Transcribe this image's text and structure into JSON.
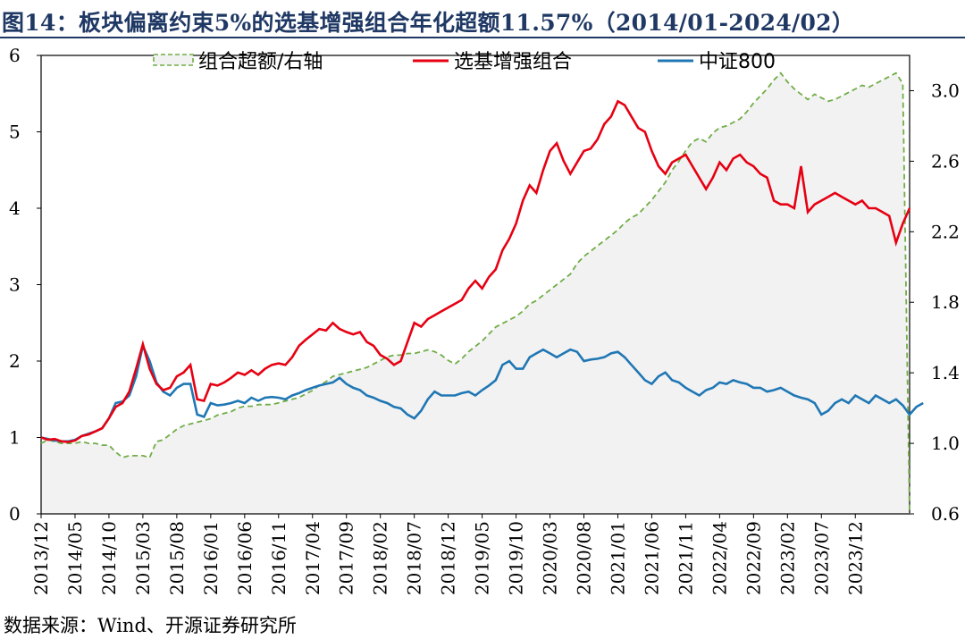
{
  "title": "图14：板块偏离约束5%的选基增强组合年化超额11.57%（2014/01-2024/02）",
  "source": "数据来源：Wind、开源证券研究所",
  "colors": {
    "title": "#1f3864",
    "excess": "#70ad47",
    "enhanced": "#e60012",
    "csi800": "#1f77b4",
    "area_fill": "#f2f2f2"
  },
  "chart_data": {
    "type": "line",
    "title": "板块偏离约束5%的选基增强组合年化超额11.57%（2014/01-2024/02）",
    "x_tick_labels": [
      "2013/12",
      "2014/05",
      "2014/10",
      "2015/03",
      "2015/08",
      "2016/01",
      "2016/06",
      "2016/11",
      "2017/04",
      "2017/09",
      "2018/02",
      "2018/07",
      "2018/12",
      "2019/05",
      "2019/10",
      "2020/03",
      "2020/08",
      "2021/01",
      "2021/06",
      "2021/11",
      "2022/04",
      "2022/09",
      "2023/02",
      "2023/07",
      "2023/12"
    ],
    "ylim_left": [
      0,
      6
    ],
    "yticks_left": [
      "0",
      "1",
      "2",
      "3",
      "4",
      "5",
      "6"
    ],
    "ylim_right": [
      0.6,
      3.2
    ],
    "yticks_right": [
      "0.6",
      "1.0",
      "1.4",
      "1.8",
      "2.2",
      "2.6",
      "3.0"
    ],
    "legend": [
      "组合超额/右轴",
      "选基增强组合",
      "中证800"
    ],
    "series": [
      {
        "name": "组合超额/右轴",
        "axis": "right",
        "style": "dashed-area",
        "values": [
          1.0,
          1.02,
          1.01,
          1.0,
          1.0,
          1.0,
          1.01,
          1.0,
          1.0,
          0.99,
          0.99,
          0.95,
          0.92,
          0.93,
          0.93,
          0.93,
          0.92,
          1.01,
          1.02,
          1.05,
          1.08,
          1.1,
          1.11,
          1.12,
          1.13,
          1.14,
          1.16,
          1.17,
          1.18,
          1.2,
          1.21,
          1.21,
          1.22,
          1.22,
          1.22,
          1.23,
          1.24,
          1.25,
          1.26,
          1.28,
          1.3,
          1.33,
          1.35,
          1.38,
          1.39,
          1.4,
          1.41,
          1.42,
          1.43,
          1.45,
          1.47,
          1.49,
          1.5,
          1.5,
          1.51,
          1.51,
          1.52,
          1.53,
          1.52,
          1.5,
          1.47,
          1.45,
          1.48,
          1.52,
          1.55,
          1.58,
          1.62,
          1.66,
          1.68,
          1.7,
          1.72,
          1.75,
          1.79,
          1.81,
          1.84,
          1.87,
          1.9,
          1.93,
          1.96,
          2.02,
          2.06,
          2.09,
          2.12,
          2.15,
          2.18,
          2.21,
          2.25,
          2.28,
          2.3,
          2.34,
          2.38,
          2.43,
          2.48,
          2.55,
          2.6,
          2.66,
          2.71,
          2.73,
          2.71,
          2.76,
          2.79,
          2.8,
          2.82,
          2.84,
          2.88,
          2.93,
          2.97,
          3.01,
          3.06,
          3.1,
          3.05,
          3.01,
          2.98,
          2.95,
          2.98,
          2.96,
          2.94,
          2.95,
          2.97,
          2.99,
          3.01,
          3.03,
          3.02,
          3.04,
          3.06,
          3.08,
          3.1,
          3.04,
          0.6
        ]
      },
      {
        "name": "选基增强组合",
        "axis": "left",
        "style": "solid",
        "values": [
          1.0,
          0.97,
          0.98,
          0.95,
          0.94,
          0.96,
          1.02,
          1.04,
          1.08,
          1.12,
          1.25,
          1.4,
          1.45,
          1.6,
          1.9,
          2.22,
          1.9,
          1.7,
          1.62,
          1.65,
          1.8,
          1.85,
          1.95,
          1.5,
          1.48,
          1.7,
          1.68,
          1.72,
          1.78,
          1.85,
          1.82,
          1.88,
          1.82,
          1.9,
          1.95,
          1.97,
          1.95,
          2.05,
          2.2,
          2.28,
          2.35,
          2.42,
          2.4,
          2.5,
          2.42,
          2.38,
          2.35,
          2.38,
          2.25,
          2.2,
          2.08,
          2.03,
          1.95,
          2.0,
          2.25,
          2.5,
          2.45,
          2.55,
          2.6,
          2.65,
          2.7,
          2.75,
          2.8,
          2.95,
          3.05,
          2.95,
          3.1,
          3.2,
          3.45,
          3.6,
          3.8,
          4.1,
          4.3,
          4.2,
          4.5,
          4.75,
          4.85,
          4.62,
          4.45,
          4.6,
          4.75,
          4.78,
          4.9,
          5.1,
          5.2,
          5.4,
          5.35,
          5.2,
          5.05,
          5.0,
          4.75,
          4.55,
          4.45,
          4.6,
          4.65,
          4.7,
          4.55,
          4.4,
          4.25,
          4.4,
          4.6,
          4.5,
          4.65,
          4.7,
          4.6,
          4.55,
          4.45,
          4.4,
          4.1,
          4.05,
          4.05,
          4.0,
          4.55,
          3.95,
          4.05,
          4.1,
          4.15,
          4.2,
          4.15,
          4.1,
          4.05,
          4.1,
          4.0,
          4.0,
          3.95,
          3.9,
          3.55,
          3.8,
          4.0
        ]
      },
      {
        "name": "中证800",
        "axis": "left",
        "style": "solid",
        "values": [
          1.0,
          0.98,
          0.96,
          0.95,
          0.95,
          0.97,
          1.02,
          1.05,
          1.08,
          1.12,
          1.25,
          1.45,
          1.47,
          1.55,
          1.8,
          2.2,
          2.0,
          1.72,
          1.6,
          1.55,
          1.65,
          1.7,
          1.7,
          1.3,
          1.27,
          1.45,
          1.42,
          1.43,
          1.45,
          1.48,
          1.45,
          1.52,
          1.48,
          1.52,
          1.53,
          1.52,
          1.5,
          1.55,
          1.58,
          1.62,
          1.65,
          1.68,
          1.7,
          1.72,
          1.78,
          1.7,
          1.65,
          1.62,
          1.55,
          1.52,
          1.48,
          1.45,
          1.4,
          1.38,
          1.3,
          1.25,
          1.35,
          1.5,
          1.6,
          1.55,
          1.55,
          1.55,
          1.58,
          1.6,
          1.55,
          1.62,
          1.68,
          1.75,
          1.95,
          2.0,
          1.9,
          1.9,
          2.05,
          2.1,
          2.15,
          2.1,
          2.05,
          2.1,
          2.15,
          2.12,
          2.0,
          2.02,
          2.03,
          2.05,
          2.1,
          2.12,
          2.05,
          1.95,
          1.85,
          1.75,
          1.7,
          1.8,
          1.85,
          1.75,
          1.72,
          1.65,
          1.6,
          1.55,
          1.62,
          1.65,
          1.72,
          1.7,
          1.75,
          1.72,
          1.7,
          1.65,
          1.65,
          1.6,
          1.62,
          1.65,
          1.6,
          1.55,
          1.52,
          1.5,
          1.45,
          1.3,
          1.35,
          1.45,
          1.5,
          1.45,
          1.55,
          1.5,
          1.45,
          1.55,
          1.5,
          1.45,
          1.5,
          1.42,
          1.3,
          1.4,
          1.45
        ]
      }
    ]
  }
}
